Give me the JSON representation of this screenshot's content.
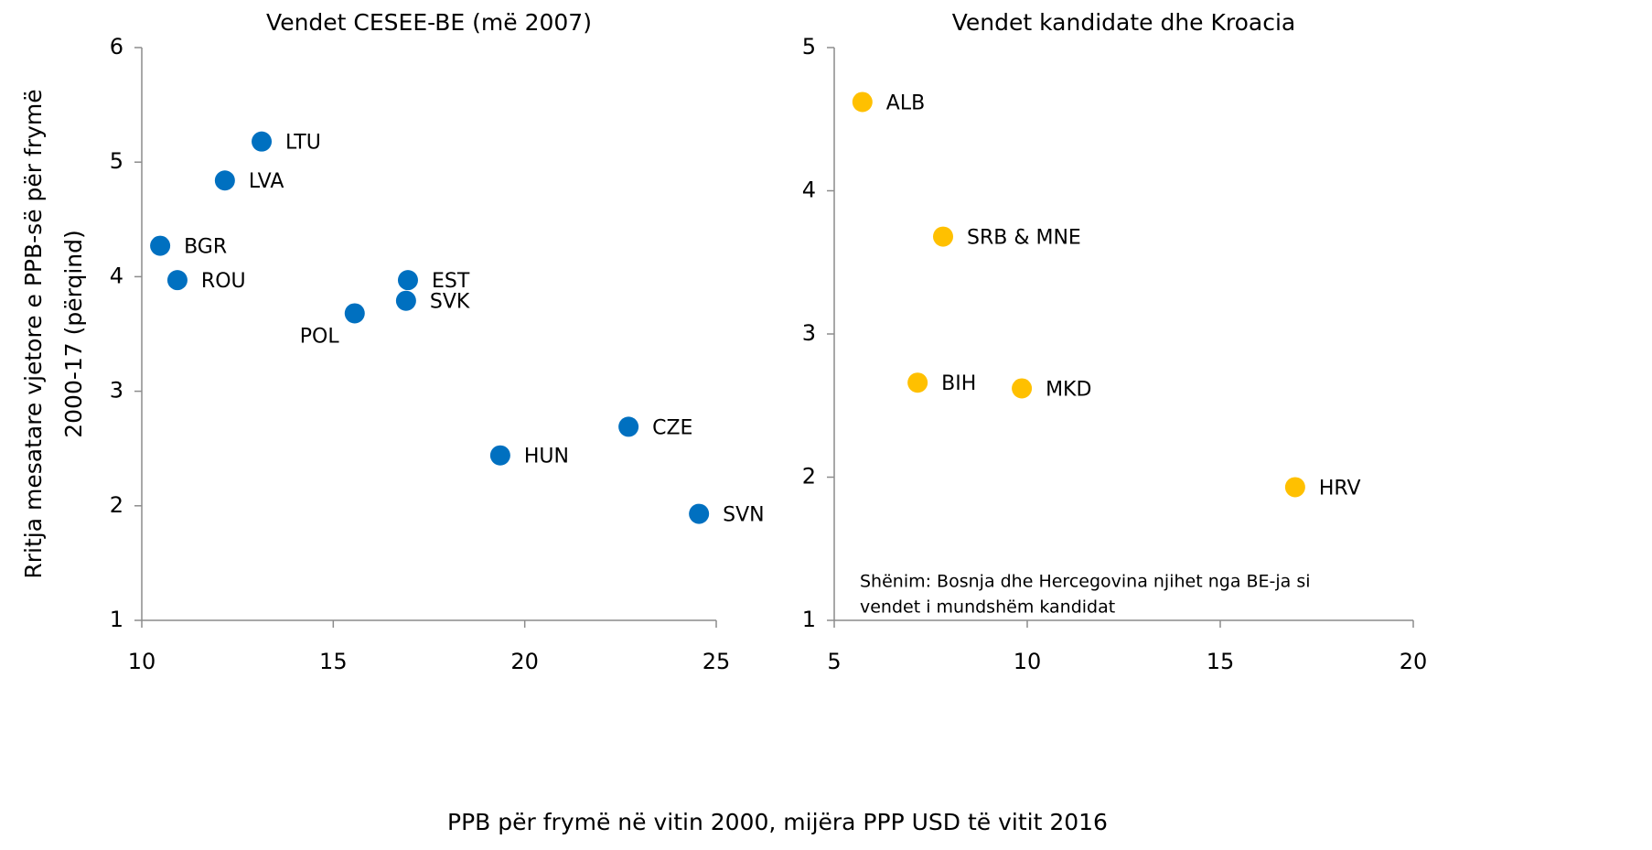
{
  "ylabel": [
    "Rritja mesatare vjetore e PPB-së për frymë",
    "2000-17 (përqind)"
  ],
  "xlabel": "PPB për frymë në vitin 2000, mijëra PPP USD të vitit 2016",
  "chart_data": [
    {
      "type": "scatter",
      "title": "Vendet CESEE-BE (më 2007)",
      "color": "#0070c0",
      "point_labels": [
        "LTU",
        "LVA",
        "BGR",
        "ROU",
        "EST",
        "SVK",
        "POL",
        "CZE",
        "HUN",
        "SVN"
      ],
      "x": [
        13.13,
        12.17,
        10.48,
        10.93,
        16.95,
        16.9,
        15.56,
        22.71,
        19.36,
        24.55
      ],
      "values": [
        5.18,
        4.84,
        4.27,
        3.97,
        3.97,
        3.79,
        3.68,
        2.69,
        2.44,
        1.93
      ],
      "xlim": [
        10,
        25
      ],
      "xticks": [
        10,
        15,
        20,
        25
      ],
      "ylim": [
        1,
        6
      ],
      "yticks": [
        1,
        2,
        3,
        4,
        5,
        6
      ]
    },
    {
      "type": "scatter",
      "title": "Vendet kandidate dhe Kroacia",
      "color": "#ffc000",
      "point_labels": [
        "ALB",
        "SRB & MNE",
        "BIH",
        "MKD",
        "HRV"
      ],
      "x": [
        5.73,
        7.82,
        7.16,
        9.86,
        16.94
      ],
      "values": [
        4.62,
        3.68,
        2.66,
        2.62,
        1.93
      ],
      "xlim": [
        5,
        20
      ],
      "xticks": [
        5,
        10,
        15,
        20
      ],
      "ylim": [
        1,
        5
      ],
      "yticks": [
        1,
        2,
        3,
        4,
        5
      ],
      "note": [
        "Shënim: Bosnja dhe Hercegovina njihet nga BE-ja si",
        "vendet i mundshëm kandidat"
      ]
    }
  ]
}
